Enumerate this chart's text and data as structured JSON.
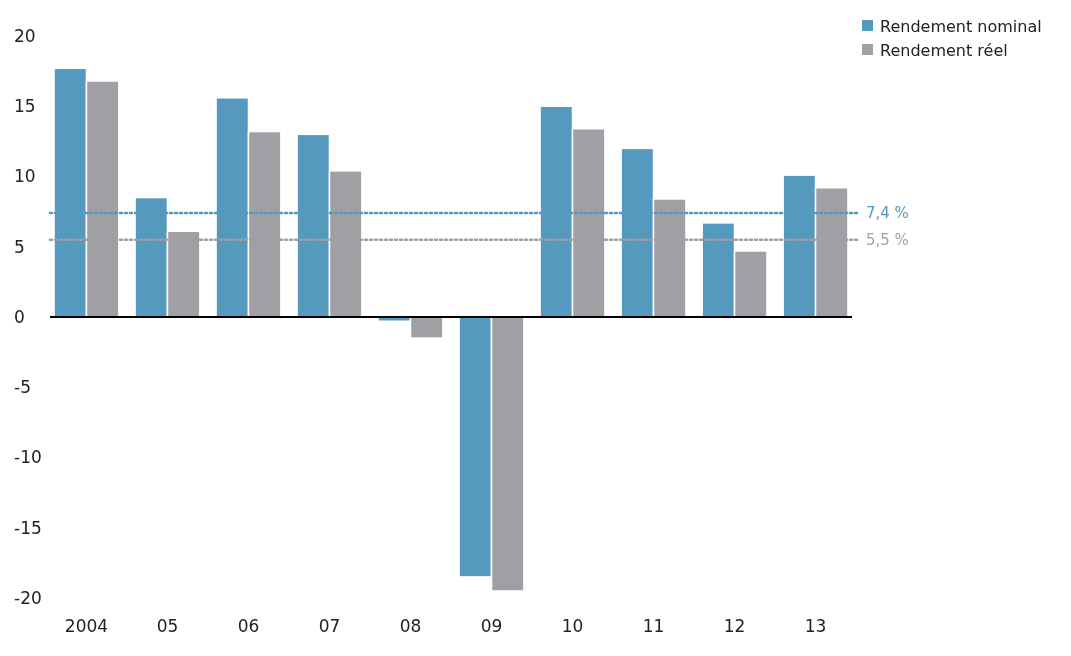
{
  "chart_data": {
    "type": "bar",
    "categories": [
      "2004",
      "05",
      "06",
      "07",
      "08",
      "09",
      "10",
      "11",
      "12",
      "13"
    ],
    "series": [
      {
        "name": "Rendement nominal",
        "color": "#5599bf",
        "values": [
          17.7,
          8.5,
          15.6,
          13.0,
          -0.3,
          -18.5,
          15.0,
          12.0,
          6.7,
          10.1
        ]
      },
      {
        "name": "Rendement réel",
        "color": "#a0a0a4",
        "values": [
          16.8,
          6.1,
          13.2,
          10.4,
          -1.5,
          -19.5,
          13.4,
          8.4,
          4.7,
          9.2
        ]
      }
    ],
    "ylim": [
      -20,
      20
    ],
    "yticks": [
      -20,
      -15,
      -10,
      -5,
      0,
      5,
      10,
      15,
      20
    ],
    "legend": "top right",
    "ref_lines": [
      {
        "axis": "y",
        "value": 7.4,
        "label": "7,4 %",
        "color": "#5599bf",
        "line_style": "dotted"
      },
      {
        "axis": "y",
        "value": 5.5,
        "label": "5,5 %",
        "color": "#a0a0a4",
        "line_style": "dotted"
      }
    ]
  }
}
